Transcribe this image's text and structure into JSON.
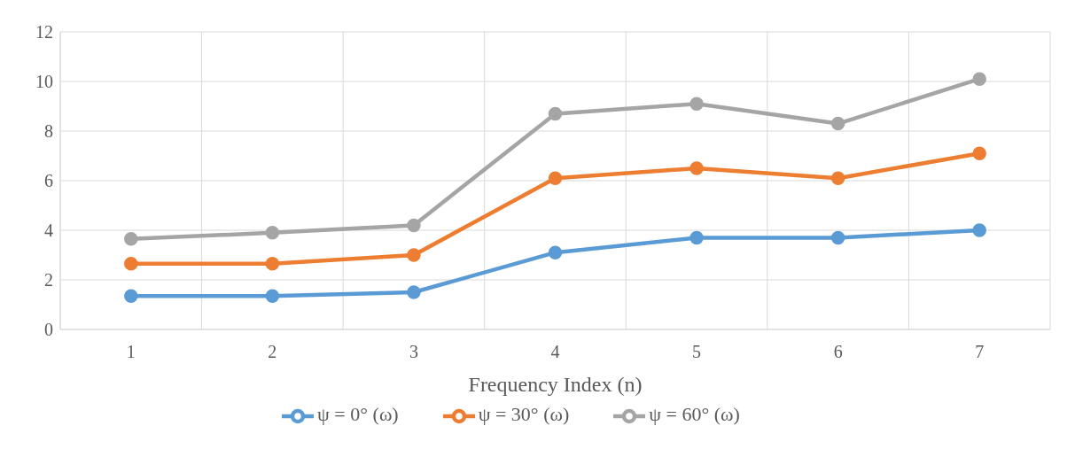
{
  "chart_data": {
    "type": "line",
    "xlabel": "Frequency Index (n)",
    "categories": [
      "1",
      "2",
      "3",
      "4",
      "5",
      "6",
      "7"
    ],
    "series": [
      {
        "name": "ψ = 0° (ω)",
        "color": "#5b9bd5",
        "values": [
          1.35,
          1.35,
          1.5,
          3.1,
          3.7,
          3.7,
          4.0
        ]
      },
      {
        "name": "ψ = 30° (ω)",
        "color": "#ed7d31",
        "values": [
          2.65,
          2.65,
          3.0,
          6.1,
          6.5,
          6.1,
          7.1
        ]
      },
      {
        "name": "ψ = 60° (ω)",
        "color": "#a5a5a5",
        "values": [
          3.65,
          3.9,
          4.2,
          8.7,
          9.1,
          8.3,
          10.1
        ]
      }
    ],
    "ylim": [
      0,
      12
    ],
    "yticks": [
      0,
      2,
      4,
      6,
      8,
      10,
      12
    ],
    "grid": true,
    "legend": "bottom",
    "marker": "circle",
    "line_style": "solid"
  }
}
